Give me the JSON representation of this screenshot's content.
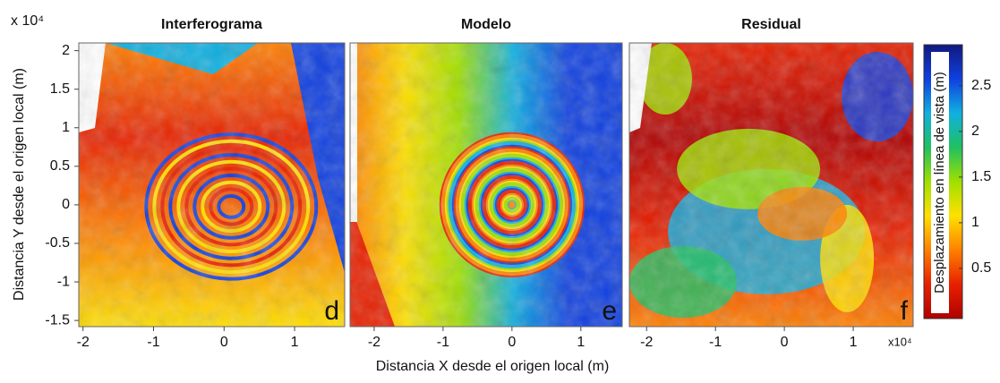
{
  "chart_data": [
    {
      "type": "heatmap",
      "title": "Interferograma",
      "annotation": "d",
      "xlim": [
        -2.06,
        1.71
      ],
      "ylim": [
        -1.58,
        2.1
      ],
      "xticks": [
        -2,
        -1,
        0,
        1
      ],
      "yticks": [
        -1.5,
        -1,
        -0.5,
        0,
        0.5,
        1,
        1.5,
        2
      ],
      "y_exponent": "x 10⁴",
      "ylabel": "Distancia Y desde el origen local (m)"
    },
    {
      "type": "heatmap",
      "title": "Modelo",
      "annotation": "e",
      "xlim": [
        -2.35,
        1.6
      ],
      "ylim": [
        -1.58,
        2.1
      ],
      "xticks": [
        -2,
        -1,
        0,
        1
      ],
      "xlabel": "Distancia X desde el origen local (m)"
    },
    {
      "type": "heatmap",
      "title": "Residual",
      "annotation": "f",
      "xlim": [
        -2.25,
        1.87
      ],
      "ylim": [
        -1.58,
        2.1
      ],
      "xticks": [
        -2,
        -1,
        0,
        1
      ],
      "x_exponent": "x10⁴"
    },
    {
      "type": "colorbar",
      "label": "Desplazamiento en línea de vista (m)",
      "clim": [
        -0.05,
        2.95
      ],
      "ticks": [
        0.5,
        1,
        1.5,
        2,
        2.5
      ],
      "colors": [
        "#b00000",
        "#e82000",
        "#ff8000",
        "#ffe000",
        "#a0e000",
        "#20c060",
        "#10b0e0",
        "#1040e0",
        "#101880"
      ]
    }
  ]
}
